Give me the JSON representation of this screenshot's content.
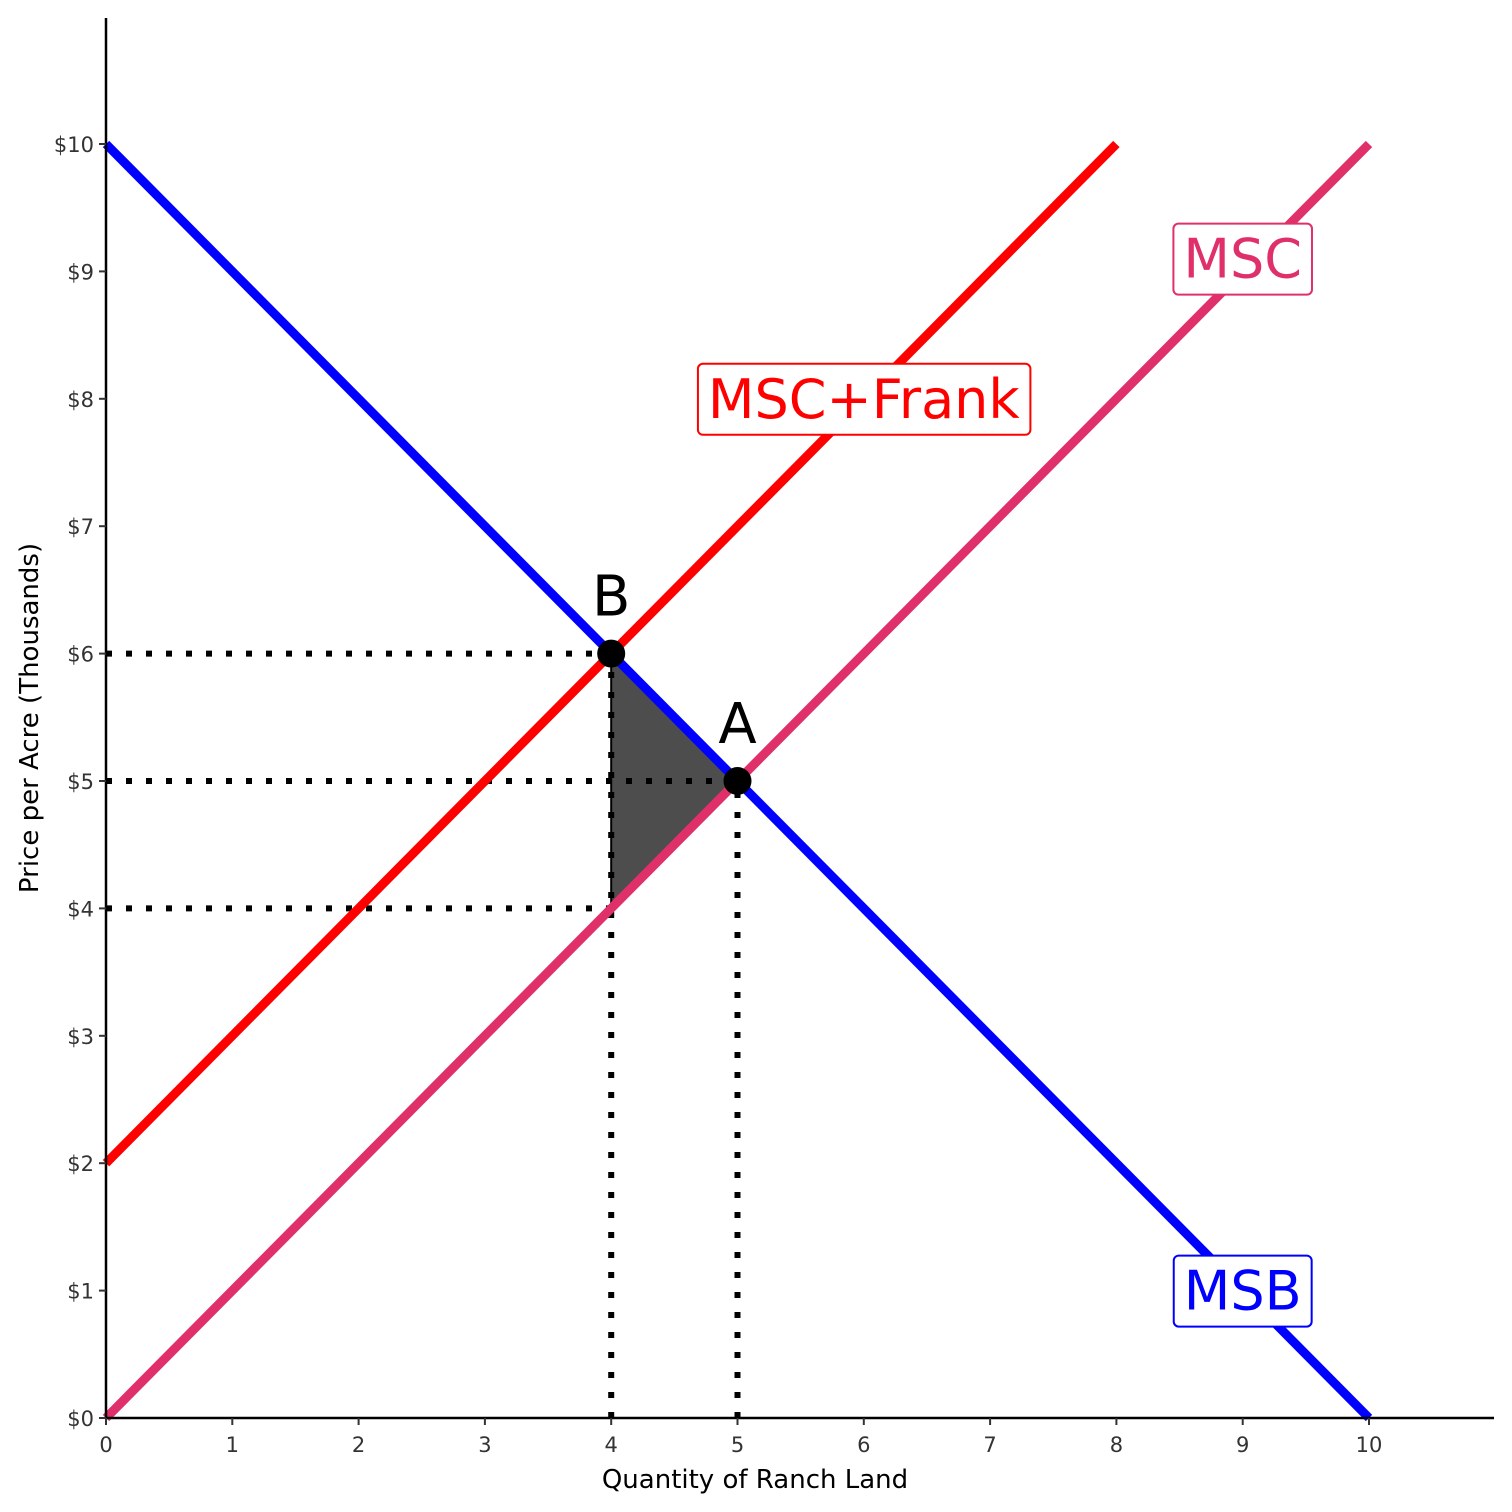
{
  "chart_data": {
    "type": "line",
    "xlabel": "Quantity of Ranch Land",
    "ylabel": "Price per Acre (Thousands)",
    "xlim": [
      0,
      11
    ],
    "ylim": [
      0,
      11
    ],
    "x_ticks": [
      0,
      1,
      2,
      3,
      4,
      5,
      6,
      7,
      8,
      9,
      10
    ],
    "x_tick_labels": [
      "0",
      "1",
      "2",
      "3",
      "4",
      "5",
      "6",
      "7",
      "8",
      "9",
      "10"
    ],
    "y_ticks": [
      0,
      1,
      2,
      3,
      4,
      5,
      6,
      7,
      8,
      9,
      10
    ],
    "y_tick_labels": [
      "$0",
      "$1",
      "$2",
      "$3",
      "$4",
      "$5",
      "$6",
      "$7",
      "$8",
      "$9",
      "$10"
    ],
    "grid": false,
    "series": [
      {
        "name": "MSB",
        "color": "#0000ff",
        "x": [
          0,
          10
        ],
        "y": [
          10,
          0
        ]
      },
      {
        "name": "MSC+Frank",
        "color": "#ff0000",
        "x": [
          0,
          8
        ],
        "y": [
          2,
          10
        ]
      },
      {
        "name": "MSC",
        "color": "#e0306a",
        "x": [
          0,
          10
        ],
        "y": [
          0,
          10
        ]
      }
    ],
    "curve_labels": [
      {
        "text": "MSB",
        "color": "#0000ff",
        "x": 9,
        "y": 1
      },
      {
        "text": "MSC+Frank",
        "color": "#ff0000",
        "x": 6,
        "y": 8
      },
      {
        "text": "MSC",
        "color": "#e0306a",
        "x": 9,
        "y": 9.1
      }
    ],
    "points": [
      {
        "label": "A",
        "x": 5,
        "y": 5
      },
      {
        "label": "B",
        "x": 4,
        "y": 6
      }
    ],
    "reference_lines": [
      {
        "x": [
          0,
          4
        ],
        "y": [
          6,
          6
        ]
      },
      {
        "x": [
          0,
          5
        ],
        "y": [
          5,
          5
        ]
      },
      {
        "x": [
          0,
          4
        ],
        "y": [
          4,
          4
        ]
      },
      {
        "x": [
          4,
          4
        ],
        "y": [
          0,
          6
        ]
      },
      {
        "x": [
          5,
          5
        ],
        "y": [
          0,
          5
        ]
      }
    ],
    "shaded_area": {
      "color": "#4d4d4d",
      "x": [
        4,
        4,
        5
      ],
      "y": [
        6,
        4,
        5
      ]
    }
  }
}
